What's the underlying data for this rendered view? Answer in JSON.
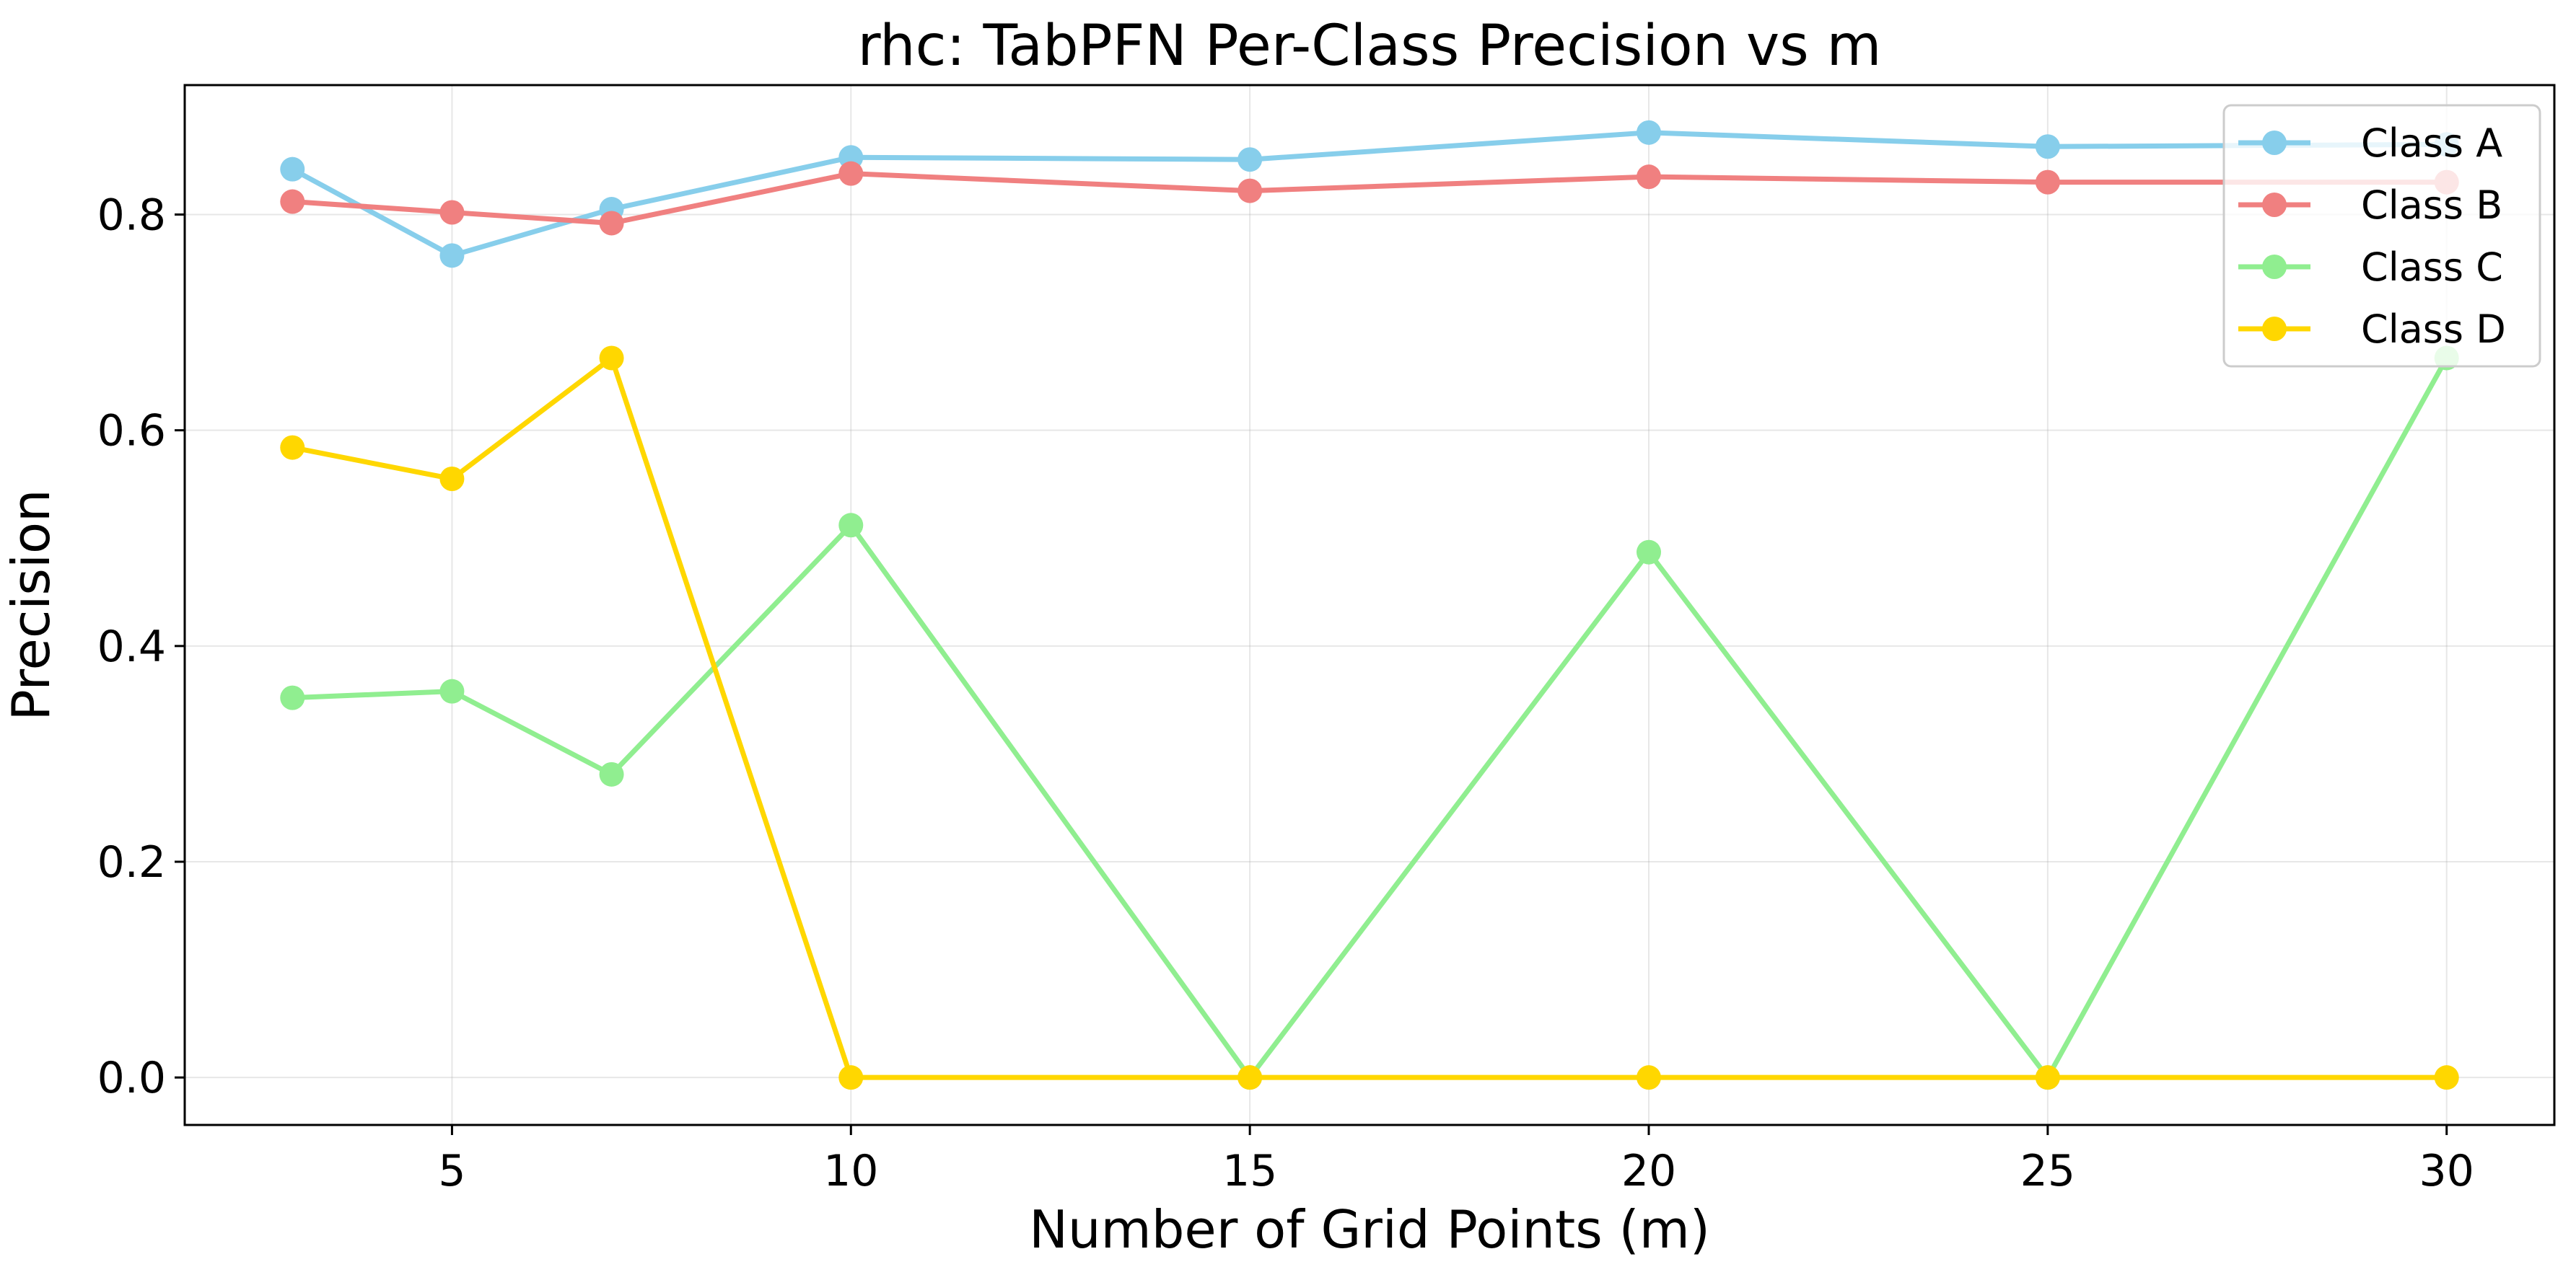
{
  "chart_data": {
    "type": "line",
    "title": "rhc: TabPFN Per-Class Precision vs m",
    "xlabel": "Number of Grid Points (m)",
    "ylabel": "Precision",
    "x": [
      3,
      5,
      7,
      10,
      15,
      20,
      25,
      30
    ],
    "xlim": [
      1.65,
      31.35
    ],
    "ylim": [
      -0.044,
      0.92
    ],
    "xticks": [
      5,
      10,
      15,
      20,
      25,
      30
    ],
    "xtick_labels": [
      "5",
      "10",
      "15",
      "20",
      "25",
      "30"
    ],
    "yticks": [
      0.0,
      0.2,
      0.4,
      0.6,
      0.8
    ],
    "ytick_labels": [
      "0.0",
      "0.2",
      "0.4",
      "0.6",
      "0.8"
    ],
    "grid": true,
    "legend_position": "top-right",
    "series": [
      {
        "name": "Class A",
        "color": "#87CEEB",
        "values": [
          0.842,
          0.762,
          0.805,
          0.853,
          0.851,
          0.876,
          0.863,
          0.865
        ]
      },
      {
        "name": "Class B",
        "color": "#F08080",
        "values": [
          0.812,
          0.802,
          0.792,
          0.838,
          0.822,
          0.835,
          0.83,
          0.83
        ]
      },
      {
        "name": "Class C",
        "color": "#90EE90",
        "values": [
          0.352,
          0.358,
          0.281,
          0.512,
          0.0,
          0.487,
          0.0,
          0.667
        ]
      },
      {
        "name": "Class D",
        "color": "#FFD700",
        "values": [
          0.584,
          0.555,
          0.667,
          0.0,
          0.0,
          0.0,
          0.0,
          0.0
        ]
      }
    ]
  }
}
